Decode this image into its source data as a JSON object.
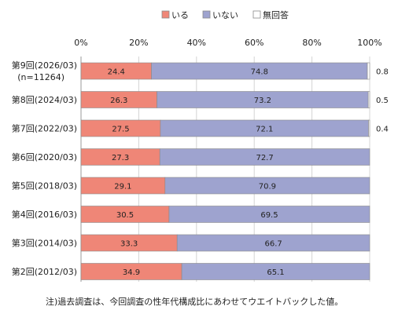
{
  "chart_data": {
    "type": "bar",
    "orientation": "horizontal",
    "stacked": true,
    "legend_position": "top",
    "grid": true,
    "xlim": [
      0,
      100
    ],
    "x_ticks": [
      "0%",
      "20%",
      "40%",
      "60%",
      "80%",
      "100%"
    ],
    "categories": [
      [
        "第9回(2026/03)",
        "(n=11264)"
      ],
      [
        "第8回(2024/03)"
      ],
      [
        "第7回(2022/03)"
      ],
      [
        "第6回(2020/03)"
      ],
      [
        "第5回(2018/03)"
      ],
      [
        "第4回(2016/03)"
      ],
      [
        "第3回(2014/03)"
      ],
      [
        "第2回(2012/03)"
      ]
    ],
    "series": [
      {
        "name": "いる",
        "color": "#ef8677",
        "values": [
          24.4,
          26.3,
          27.5,
          27.3,
          29.1,
          30.5,
          33.3,
          34.9
        ]
      },
      {
        "name": "いない",
        "color": "#9ea3cf",
        "values": [
          74.8,
          73.2,
          72.1,
          72.7,
          70.9,
          69.5,
          66.7,
          65.1
        ]
      },
      {
        "name": "無回答",
        "color": "#ffffff",
        "values": [
          0.8,
          0.5,
          0.4,
          null,
          null,
          null,
          null,
          null
        ]
      }
    ],
    "data_labels": [
      [
        "24.4",
        "74.8",
        "0.8"
      ],
      [
        "26.3",
        "73.2",
        "0.5"
      ],
      [
        "27.5",
        "72.1",
        "0.4"
      ],
      [
        "27.3",
        "72.7",
        ""
      ],
      [
        "29.1",
        "70.9",
        ""
      ],
      [
        "30.5",
        "69.5",
        ""
      ],
      [
        "33.3",
        "66.7",
        ""
      ],
      [
        "34.9",
        "65.1",
        ""
      ]
    ]
  },
  "footnote": "注)過去調査は、今回調査の性年代構成比にあわせてウエイトバックした値。"
}
